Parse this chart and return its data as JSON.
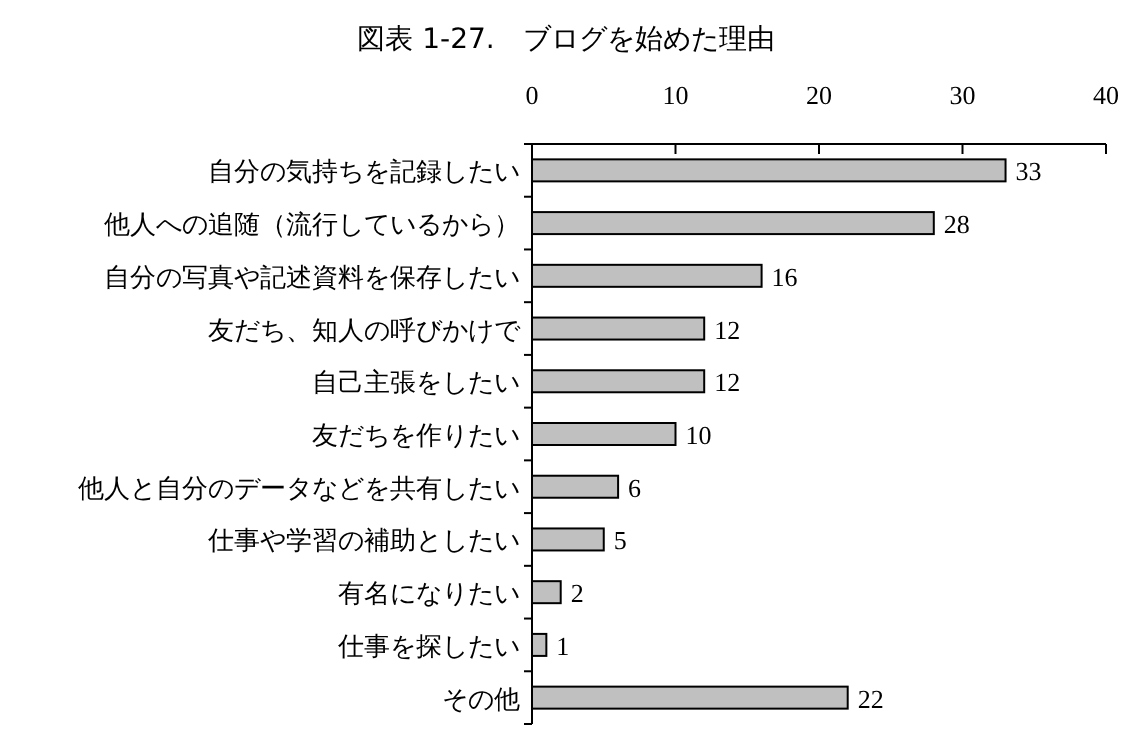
{
  "chart_data": {
    "type": "bar",
    "orientation": "horizontal",
    "title": "図表  1-27.　ブログを始めた理由",
    "categories": [
      "自分の気持ちを記録したい",
      "他人への追随（流行しているから）",
      "自分の写真や記述資料を保存したい",
      "友だち、知人の呼びかけで",
      "自己主張をしたい",
      "友だちを作りたい",
      "他人と自分のデータなどを共有したい",
      "仕事や学習の補助としたい",
      "有名になりたい",
      "仕事を探したい",
      "その他"
    ],
    "values": [
      33,
      28,
      16,
      12,
      12,
      10,
      6,
      5,
      2,
      1,
      22
    ],
    "color": "#c0c0c0",
    "xlim": [
      0,
      40
    ],
    "xticks": [
      0,
      10,
      20,
      30,
      40
    ],
    "data_labels": true
  }
}
